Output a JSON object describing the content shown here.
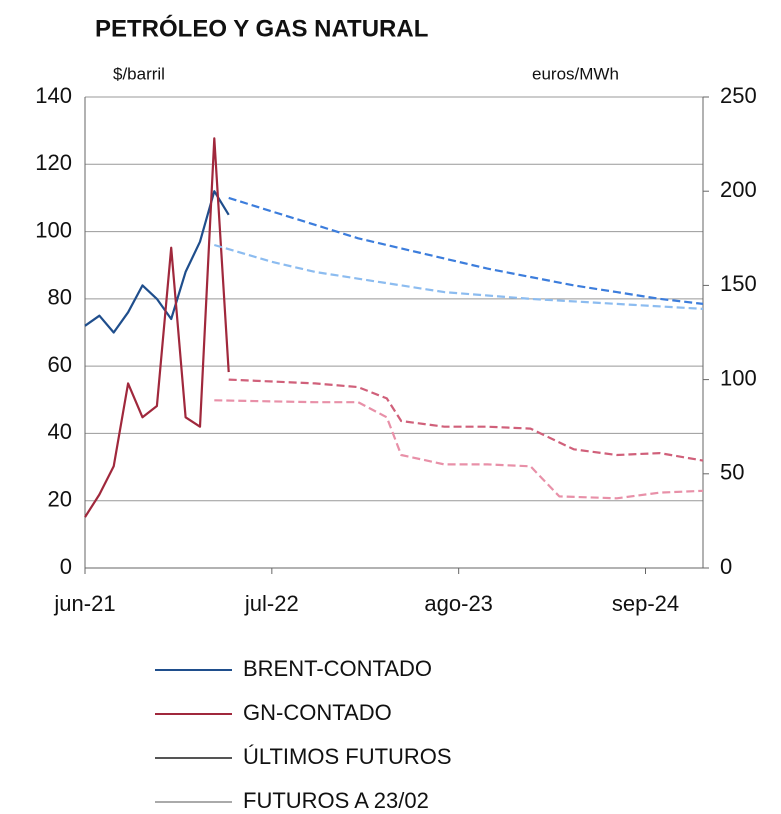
{
  "chart_data": {
    "type": "line",
    "title": "PETRÓLEO Y GAS NATURAL",
    "y_label": "$/barril",
    "y2_label": "euros/MWh",
    "xlim": [
      "2021-06",
      "2025-01"
    ],
    "xticks": [
      {
        "value": "2021-06",
        "label": "jun-21"
      },
      {
        "value": "2022-07",
        "label": "jul-22"
      },
      {
        "value": "2023-08",
        "label": "ago-23"
      },
      {
        "value": "2024-09",
        "label": "sep-24"
      }
    ],
    "ylim": [
      0,
      140
    ],
    "yticks": [
      0,
      20,
      40,
      60,
      80,
      100,
      120,
      140
    ],
    "y2lim": [
      0,
      250
    ],
    "y2ticks": [
      0,
      50,
      100,
      150,
      200,
      250
    ],
    "grid": true,
    "series": [
      {
        "color": "#1f4e8c",
        "axis": "y",
        "dash": false,
        "x": [
          "2021-06",
          "2021-07",
          "2021-08",
          "2021-09",
          "2021-10",
          "2021-11",
          "2021-12",
          "2022-01",
          "2022-02",
          "2022-03",
          "2022-04"
        ],
        "values": [
          72,
          75,
          70,
          76,
          84,
          80,
          74,
          88,
          97,
          112,
          105
        ]
      },
      {
        "color": "#a0283c",
        "axis": "y2",
        "dash": false,
        "x": [
          "2021-06",
          "2021-07",
          "2021-08",
          "2021-09",
          "2021-10",
          "2021-11",
          "2021-12",
          "2022-01",
          "2022-02",
          "2022-03",
          "2022-04"
        ],
        "values": [
          27,
          39,
          54,
          98,
          80,
          86,
          170,
          80,
          75,
          228,
          104
        ]
      },
      {
        "color": "#3c7ddc",
        "axis": "y",
        "dash": true,
        "x": [
          "2022-04",
          "2022-07",
          "2022-10",
          "2023-01",
          "2023-04",
          "2023-07",
          "2023-10",
          "2024-01",
          "2024-04",
          "2024-07",
          "2024-10",
          "2025-01"
        ],
        "values": [
          110,
          106,
          102,
          98,
          95,
          92,
          89,
          86.5,
          84,
          82,
          80,
          78.5
        ]
      },
      {
        "color": "#8cbcf0",
        "axis": "y",
        "dash": true,
        "x": [
          "2022-03",
          "2022-07",
          "2022-10",
          "2023-01",
          "2023-04",
          "2023-07",
          "2023-10",
          "2024-01",
          "2024-07",
          "2025-01"
        ],
        "values": [
          96,
          91,
          88,
          86,
          84,
          82,
          81,
          80,
          78.5,
          77
        ]
      },
      {
        "color": "#d0607a",
        "axis": "y2",
        "dash": true,
        "x": [
          "2022-04",
          "2022-10",
          "2023-01",
          "2023-03",
          "2023-04",
          "2023-07",
          "2023-10",
          "2024-01",
          "2024-04",
          "2024-07",
          "2024-10",
          "2025-01"
        ],
        "values": [
          100,
          98,
          96,
          90,
          78,
          75,
          75,
          74,
          63,
          60,
          61,
          57
        ]
      },
      {
        "color": "#e890a8",
        "axis": "y2",
        "dash": true,
        "x": [
          "2022-03",
          "2022-10",
          "2023-01",
          "2023-03",
          "2023-04",
          "2023-07",
          "2023-10",
          "2024-01",
          "2024-03",
          "2024-07",
          "2024-10",
          "2025-01"
        ],
        "values": [
          89,
          88,
          88,
          80,
          60,
          55,
          55,
          54,
          38,
          37,
          40,
          41
        ]
      }
    ],
    "legend": [
      {
        "name": "BRENT-CONTADO",
        "color": "#1f4e8c"
      },
      {
        "name": "GN-CONTADO",
        "color": "#a0283c"
      },
      {
        "name": "ÚLTIMOS FUTUROS",
        "color": "#555555"
      },
      {
        "name": "FUTUROS A 23/02",
        "color": "#aaaaaa"
      }
    ]
  }
}
